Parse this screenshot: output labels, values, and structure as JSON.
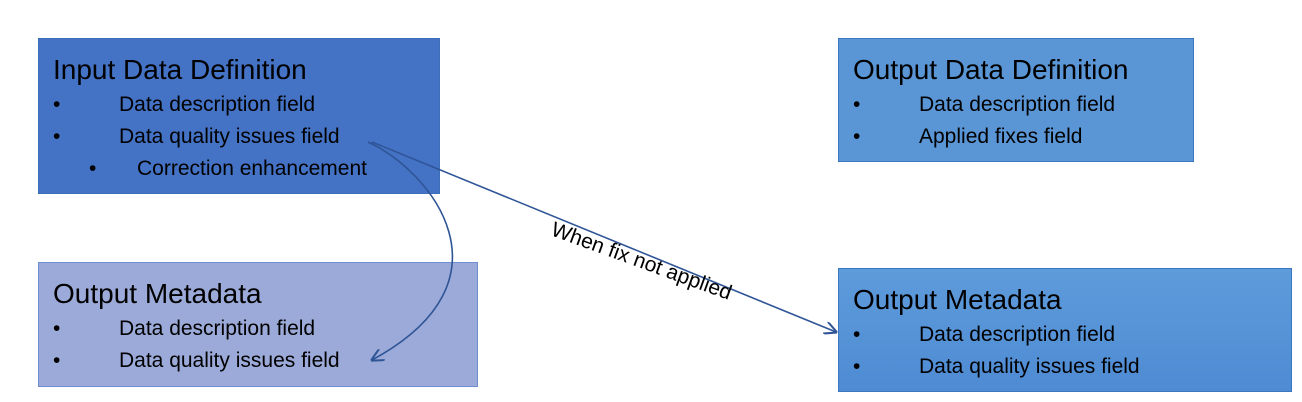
{
  "nodes": {
    "input_definition": {
      "title": "Input Data Definition",
      "items": [
        "Data description field",
        "Data quality issues field"
      ],
      "sub_items": [
        "Correction enhancement"
      ]
    },
    "output_metadata_left": {
      "title": "Output Metadata",
      "items": [
        "Data description field",
        "Data quality issues field"
      ]
    },
    "output_definition": {
      "title": "Output Data Definition",
      "items": [
        "Data description field",
        "Applied fixes field"
      ]
    },
    "output_metadata_right": {
      "title": "Output Metadata",
      "items": [
        "Data description field",
        "Data quality issues field"
      ]
    }
  },
  "edges": [
    {
      "from": "input_definition",
      "to": "output_metadata_left",
      "label": ""
    },
    {
      "from": "input_definition",
      "to": "output_metadata_right",
      "label": "When fix not applied"
    }
  ],
  "bullet_symbol": "•",
  "colors": {
    "input_fill": "#4472c4",
    "meta_left_fill": "#9baad8",
    "output_fill": "#5a96d6",
    "arrow": "#2f5597"
  }
}
